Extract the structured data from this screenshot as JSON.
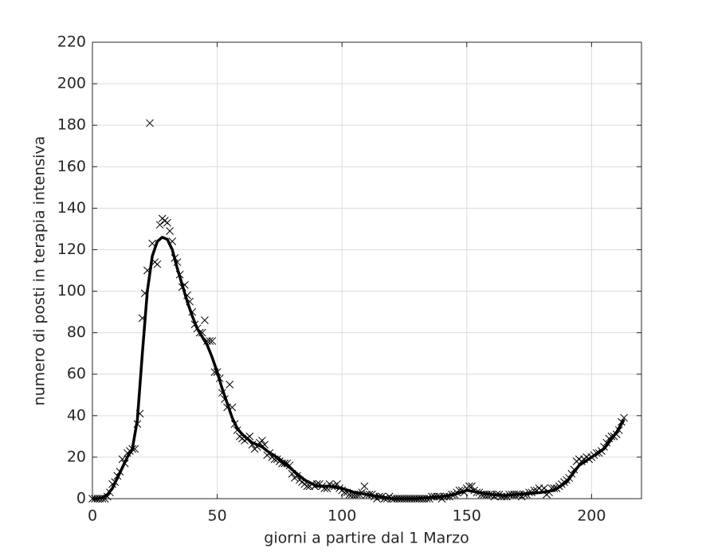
{
  "chart_data": {
    "type": "line",
    "xlabel": "giorni a partire dal 1 Marzo",
    "ylabel": "numero di posti in terapia intensiva",
    "xlim": [
      0,
      220
    ],
    "ylim": [
      0,
      220
    ],
    "xticks": [
      0,
      50,
      100,
      150,
      200
    ],
    "yticks": [
      0,
      20,
      40,
      60,
      80,
      100,
      120,
      140,
      160,
      180,
      200,
      220
    ],
    "grid": true,
    "series": [
      {
        "color": "#000000",
        "marker": "x",
        "line": false,
        "x": [
          0,
          1,
          2,
          3,
          4,
          5,
          6,
          7,
          8,
          9,
          10,
          11,
          12,
          13,
          14,
          15,
          16,
          17,
          18,
          19,
          20,
          21,
          22,
          23,
          24,
          25,
          26,
          27,
          28,
          29,
          30,
          31,
          32,
          33,
          34,
          35,
          36,
          37,
          38,
          39,
          40,
          41,
          42,
          43,
          44,
          45,
          46,
          47,
          48,
          49,
          50,
          51,
          52,
          53,
          54,
          55,
          56,
          57,
          58,
          59,
          60,
          61,
          62,
          63,
          64,
          65,
          66,
          67,
          68,
          69,
          70,
          71,
          72,
          73,
          74,
          75,
          76,
          77,
          78,
          79,
          80,
          81,
          82,
          83,
          84,
          85,
          86,
          87,
          88,
          89,
          90,
          91,
          92,
          93,
          94,
          95,
          96,
          97,
          98,
          99,
          100,
          101,
          102,
          103,
          104,
          105,
          106,
          107,
          108,
          109,
          110,
          111,
          112,
          113,
          114,
          115,
          116,
          117,
          118,
          119,
          120,
          121,
          122,
          123,
          124,
          125,
          126,
          127,
          128,
          129,
          130,
          131,
          132,
          133,
          134,
          135,
          136,
          137,
          138,
          139,
          140,
          141,
          142,
          143,
          144,
          145,
          146,
          147,
          148,
          149,
          150,
          151,
          152,
          153,
          154,
          155,
          156,
          157,
          158,
          159,
          160,
          161,
          162,
          163,
          164,
          165,
          166,
          167,
          168,
          169,
          170,
          171,
          172,
          173,
          174,
          175,
          176,
          177,
          178,
          179,
          180,
          181,
          182,
          183,
          184,
          185,
          186,
          187,
          188,
          189,
          190,
          191,
          192,
          193,
          194,
          195,
          196,
          197,
          198,
          199,
          200,
          201,
          202,
          203,
          204,
          205,
          206,
          207,
          208,
          209,
          210,
          211,
          212,
          213
        ],
        "values": [
          0,
          0,
          0,
          0,
          0,
          0,
          1,
          3,
          7,
          8,
          11,
          13,
          19,
          17,
          22,
          23,
          24,
          24,
          36,
          41,
          87,
          99,
          110,
          181,
          123,
          114,
          113,
          132,
          135,
          134,
          133,
          129,
          124,
          116,
          114,
          108,
          102,
          103,
          98,
          95,
          90,
          84,
          82,
          80,
          80,
          86,
          76,
          76,
          76,
          61,
          61,
          58,
          51,
          48,
          44,
          55,
          44,
          36,
          33,
          30,
          29,
          28,
          29,
          30,
          26,
          24,
          25,
          27,
          28,
          26,
          21,
          22,
          20,
          19,
          19,
          18,
          17,
          17,
          17,
          16,
          12,
          10,
          11,
          9,
          8,
          7,
          6,
          6,
          7,
          6,
          7,
          7,
          6,
          5,
          5,
          7,
          6,
          6,
          7,
          5,
          4,
          3,
          3,
          2,
          2,
          2,
          2,
          2,
          3,
          6,
          2,
          2,
          2,
          1,
          0,
          1,
          1,
          0,
          0,
          1,
          0,
          0,
          0,
          0,
          0,
          0,
          0,
          0,
          0,
          0,
          0,
          0,
          0,
          0,
          0,
          0,
          1,
          1,
          1,
          1,
          0,
          1,
          1,
          1,
          2,
          2,
          3,
          4,
          4,
          3,
          5,
          6,
          6,
          4,
          3,
          3,
          2,
          2,
          2,
          2,
          2,
          1,
          2,
          2,
          1,
          1,
          1,
          2,
          2,
          2,
          2,
          2,
          1,
          2,
          2,
          3,
          3,
          4,
          4,
          5,
          4,
          5,
          2,
          3,
          5,
          5,
          5,
          6,
          7,
          8,
          9,
          10,
          12,
          14,
          18,
          19,
          18,
          19,
          20,
          19,
          20,
          21,
          22,
          22,
          23,
          25,
          27,
          29,
          30,
          30,
          31,
          33,
          37,
          39
        ]
      },
      {
        "color": "#000000",
        "marker": "none",
        "line": true,
        "x": [
          0,
          2,
          4,
          6,
          8,
          10,
          12,
          14,
          16,
          18,
          20,
          22,
          24,
          26,
          28,
          30,
          32,
          34,
          36,
          38,
          40,
          42,
          44,
          46,
          48,
          50,
          52,
          54,
          56,
          58,
          60,
          62,
          64,
          66,
          68,
          70,
          75,
          80,
          85,
          90,
          95,
          100,
          105,
          110,
          115,
          120,
          125,
          130,
          135,
          140,
          145,
          150,
          155,
          160,
          165,
          170,
          175,
          180,
          185,
          190,
          195,
          200,
          205,
          210,
          213
        ],
        "values": [
          0,
          0,
          0.5,
          2,
          5,
          10,
          15,
          20,
          24,
          38,
          70,
          100,
          117,
          124,
          126,
          125,
          120,
          111,
          103,
          95,
          88,
          82,
          78,
          74,
          68,
          61,
          53,
          46,
          39,
          34,
          31,
          29,
          27,
          26,
          25,
          23,
          19,
          14,
          9,
          6,
          6,
          5,
          3,
          2,
          1,
          0,
          0,
          0,
          0.5,
          1,
          2,
          4,
          3,
          2,
          1.5,
          2,
          2.5,
          3,
          4,
          8,
          16,
          20,
          24,
          32,
          38
        ]
      }
    ]
  }
}
